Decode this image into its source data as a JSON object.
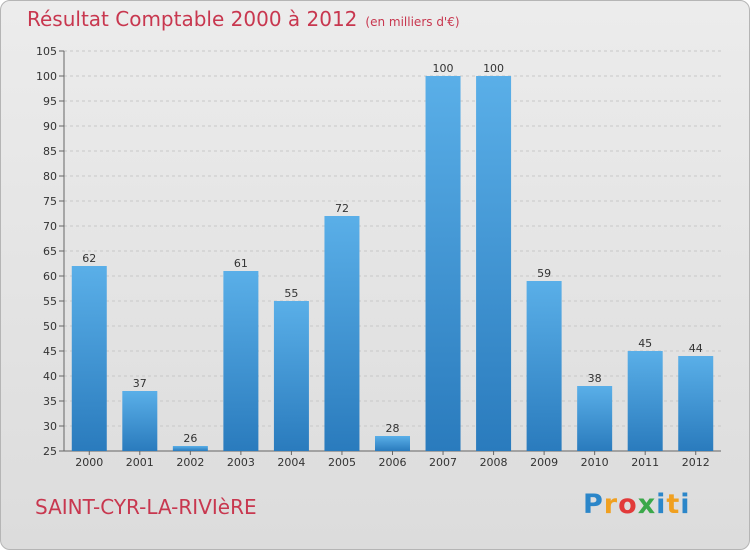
{
  "header": {
    "title": "Résultat Comptable 2000 à 2012",
    "unit": "(en milliers d'€)"
  },
  "footer": {
    "commune": "SAINT-CYR-LA-RIVIèRE",
    "logo": {
      "letters": [
        "P",
        "r",
        "o",
        "x",
        "i",
        "t",
        "i"
      ],
      "colors": [
        "#2b86c9",
        "#f0a020",
        "#e23a3a",
        "#3aa84a",
        "#2b86c9",
        "#f0a020",
        "#2b86c9"
      ]
    }
  },
  "colors": {
    "bar_top": "#5aafe8",
    "bar_bottom": "#2a7bbd",
    "title": "#c8374f"
  },
  "chart_data": {
    "type": "bar",
    "categories": [
      "2000",
      "2001",
      "2002",
      "2003",
      "2004",
      "2005",
      "2006",
      "2007",
      "2008",
      "2009",
      "2010",
      "2011",
      "2012"
    ],
    "values": [
      62,
      37,
      26,
      61,
      55,
      72,
      28,
      100,
      100,
      59,
      38,
      45,
      44
    ],
    "ylim": [
      25,
      105
    ],
    "yticks": [
      25,
      30,
      35,
      40,
      45,
      50,
      55,
      60,
      65,
      70,
      75,
      80,
      85,
      90,
      95,
      100,
      105
    ],
    "grid": true
  }
}
